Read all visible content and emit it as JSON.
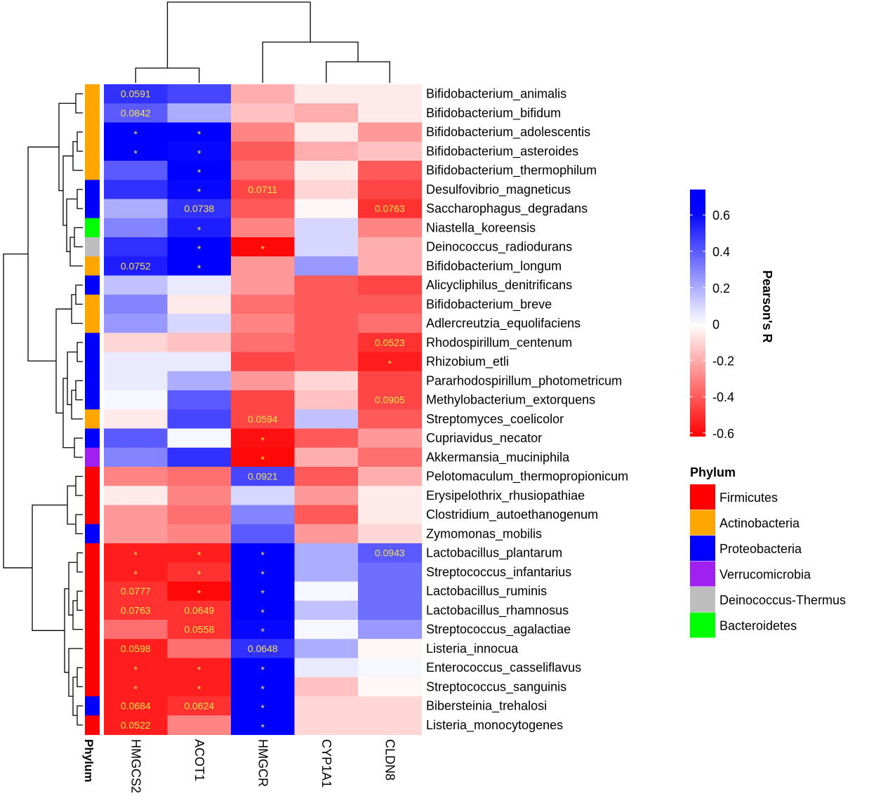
{
  "chart_data": {
    "type": "heatmap",
    "columns": [
      "HMGCS2",
      "ACOT1",
      "HMGCR",
      "CYP1A1",
      "CLDN8"
    ],
    "rows": [
      "Bifidobacterium_animalis",
      "Bifidobacterium_bifidum",
      "Bifidobacterium_adolescentis",
      "Bifidobacterium_asteroides",
      "Bifidobacterium_thermophilum",
      "Desulfovibrio_magneticus",
      "Saccharophagus_degradans",
      "Niastella_koreensis",
      "Deinococcus_radiodurans",
      "Bifidobacterium_longum",
      "Alicycliphilus_denitrificans",
      "Bifidobacterium_breve",
      "Adlercreutzia_equolifaciens",
      "Rhodospirillum_centenum",
      "Rhizobium_etli",
      "Pararhodospirillum_photometricum",
      "Methylobacterium_extorquens",
      "Streptomyces_coelicolor",
      "Cupriavidus_necator",
      "Akkermansia_muciniphila",
      "Pelotomaculum_thermopropionicum",
      "Erysipelothrix_rhusiopathiae",
      "Clostridium_autoethanogenum",
      "Zymomonas_mobilis",
      "Lactobacillus_plantarum",
      "Streptococcus_infantarius",
      "Lactobacillus_ruminis",
      "Lactobacillus_rhamnosus",
      "Streptococcus_agalactiae",
      "Listeria_innocua",
      "Enterococcus_casseliflavus",
      "Streptococcus_sanguinis",
      "Bibersteinia_trehalosi",
      "Listeria_monocytogenes"
    ],
    "values": [
      [
        0.5,
        0.45,
        -0.2,
        -0.05,
        -0.05
      ],
      [
        0.4,
        0.2,
        -0.15,
        -0.2,
        -0.05
      ],
      [
        0.65,
        0.65,
        -0.3,
        -0.05,
        -0.25
      ],
      [
        0.65,
        0.6,
        -0.4,
        -0.2,
        -0.15
      ],
      [
        0.4,
        0.65,
        -0.35,
        -0.05,
        -0.4
      ],
      [
        0.5,
        0.6,
        -0.45,
        -0.1,
        -0.45
      ],
      [
        0.2,
        0.5,
        -0.4,
        -0.02,
        -0.5
      ],
      [
        0.3,
        0.55,
        -0.3,
        0.1,
        -0.3
      ],
      [
        0.5,
        0.72,
        -0.6,
        0.1,
        -0.2
      ],
      [
        0.55,
        0.7,
        -0.25,
        0.25,
        -0.2
      ],
      [
        0.15,
        0.05,
        -0.25,
        -0.4,
        -0.45
      ],
      [
        0.3,
        -0.05,
        -0.35,
        -0.4,
        -0.4
      ],
      [
        0.25,
        0.1,
        -0.3,
        -0.4,
        -0.35
      ],
      [
        -0.1,
        -0.15,
        -0.35,
        -0.4,
        -0.5
      ],
      [
        0.05,
        0.05,
        -0.45,
        -0.4,
        -0.55
      ],
      [
        0.05,
        0.2,
        -0.25,
        -0.1,
        -0.45
      ],
      [
        0.02,
        0.4,
        -0.45,
        -0.15,
        -0.45
      ],
      [
        -0.05,
        0.45,
        -0.45,
        0.15,
        -0.4
      ],
      [
        0.4,
        0.02,
        -0.58,
        -0.4,
        -0.25
      ],
      [
        0.3,
        0.5,
        -0.6,
        -0.2,
        -0.35
      ],
      [
        -0.3,
        -0.35,
        0.45,
        -0.4,
        -0.2
      ],
      [
        -0.05,
        -0.3,
        0.1,
        -0.25,
        -0.05
      ],
      [
        -0.25,
        -0.35,
        0.3,
        -0.4,
        -0.05
      ],
      [
        -0.25,
        -0.3,
        0.4,
        -0.25,
        -0.1
      ],
      [
        -0.55,
        -0.55,
        0.72,
        0.2,
        0.4
      ],
      [
        -0.55,
        -0.5,
        0.72,
        0.2,
        0.35
      ],
      [
        -0.5,
        -0.6,
        0.65,
        0.02,
        0.35
      ],
      [
        -0.5,
        -0.5,
        0.65,
        0.15,
        0.35
      ],
      [
        -0.35,
        -0.5,
        0.6,
        0.02,
        0.25
      ],
      [
        -0.55,
        -0.35,
        0.5,
        0.2,
        -0.02
      ],
      [
        -0.55,
        -0.55,
        0.65,
        0.05,
        0.02
      ],
      [
        -0.55,
        -0.55,
        0.7,
        -0.15,
        -0.02
      ],
      [
        -0.55,
        -0.5,
        0.65,
        -0.1,
        -0.1
      ],
      [
        -0.55,
        -0.3,
        0.68,
        -0.1,
        -0.1
      ]
    ],
    "annotations": [
      [
        "0.0591",
        "",
        "",
        "",
        ""
      ],
      [
        "0.0842",
        "",
        "",
        "",
        ""
      ],
      [
        "*",
        "*",
        "",
        "",
        ""
      ],
      [
        "*",
        "*",
        "",
        "",
        ""
      ],
      [
        "",
        "*",
        "",
        "",
        ""
      ],
      [
        "",
        "*",
        "0.0711",
        "",
        ""
      ],
      [
        "",
        "0.0738",
        "",
        "",
        "0.0763"
      ],
      [
        "",
        "*",
        "",
        "",
        ""
      ],
      [
        "",
        "*",
        "*",
        "",
        ""
      ],
      [
        "0.0752",
        "*",
        "",
        "",
        ""
      ],
      [
        "",
        "",
        "",
        "",
        ""
      ],
      [
        "",
        "",
        "",
        "",
        ""
      ],
      [
        "",
        "",
        "",
        "",
        ""
      ],
      [
        "",
        "",
        "",
        "",
        "0.0523"
      ],
      [
        "",
        "",
        "",
        "",
        "*"
      ],
      [
        "",
        "",
        "",
        "",
        ""
      ],
      [
        "",
        "",
        "",
        "",
        "0.0905"
      ],
      [
        "",
        "",
        "0.0594",
        "",
        ""
      ],
      [
        "",
        "",
        "*",
        "",
        ""
      ],
      [
        "",
        "",
        "*",
        "",
        ""
      ],
      [
        "",
        "",
        "0.0921",
        "",
        ""
      ],
      [
        "",
        "",
        "",
        "",
        ""
      ],
      [
        "",
        "",
        "",
        "",
        ""
      ],
      [
        "",
        "",
        "",
        "",
        ""
      ],
      [
        "*",
        "*",
        "*",
        "",
        "0.0943"
      ],
      [
        "*",
        "*",
        "*",
        "",
        ""
      ],
      [
        "0.0777",
        "*",
        "*",
        "",
        ""
      ],
      [
        "0.0763",
        "0.0649",
        "*",
        "",
        ""
      ],
      [
        "",
        "0.0558",
        "*",
        "",
        ""
      ],
      [
        "0.0598",
        "",
        "0.0648",
        "",
        ""
      ],
      [
        "*",
        "*",
        "*",
        "",
        ""
      ],
      [
        "*",
        "*",
        "*",
        "",
        ""
      ],
      [
        "0.0684",
        "0.0624",
        "*",
        "",
        ""
      ],
      [
        "0.0522",
        "",
        "*",
        "",
        ""
      ]
    ],
    "row_phylum": [
      "Actinobacteria",
      "Actinobacteria",
      "Actinobacteria",
      "Actinobacteria",
      "Actinobacteria",
      "Proteobacteria",
      "Proteobacteria",
      "Bacteroidetes",
      "Deinococcus-Thermus",
      "Actinobacteria",
      "Proteobacteria",
      "Actinobacteria",
      "Actinobacteria",
      "Proteobacteria",
      "Proteobacteria",
      "Proteobacteria",
      "Proteobacteria",
      "Actinobacteria",
      "Proteobacteria",
      "Verrucomicrobia",
      "Firmicutes",
      "Firmicutes",
      "Firmicutes",
      "Proteobacteria",
      "Firmicutes",
      "Firmicutes",
      "Firmicutes",
      "Firmicutes",
      "Firmicutes",
      "Firmicutes",
      "Firmicutes",
      "Firmicutes",
      "Proteobacteria",
      "Firmicutes"
    ],
    "annotation_track_label": "Phylum",
    "colorbar": {
      "title": "Pearson's R",
      "range": [
        -0.62,
        0.74
      ],
      "ticks": [
        0.6,
        0.4,
        0.2,
        0,
        -0.2,
        -0.4,
        -0.6
      ],
      "tick_labels": [
        "0.6",
        "0.4",
        "0.2",
        "0",
        "-0.2",
        "-0.4",
        "-0.6"
      ],
      "color_high": "#0000ff",
      "color_mid": "#ffffff",
      "color_low": "#ff0000"
    },
    "phylum_legend": {
      "title": "Phylum",
      "entries": [
        {
          "name": "Firmicutes",
          "color": "#ff0000"
        },
        {
          "name": "Actinobacteria",
          "color": "#ffa500"
        },
        {
          "name": "Proteobacteria",
          "color": "#0000ff"
        },
        {
          "name": "Verrucomicrobia",
          "color": "#a020f0"
        },
        {
          "name": "Deinococcus-Thermus",
          "color": "#bebebe"
        },
        {
          "name": "Bacteroidetes",
          "color": "#00ff00"
        }
      ]
    },
    "annotation_text_color": "#f5e14d"
  }
}
